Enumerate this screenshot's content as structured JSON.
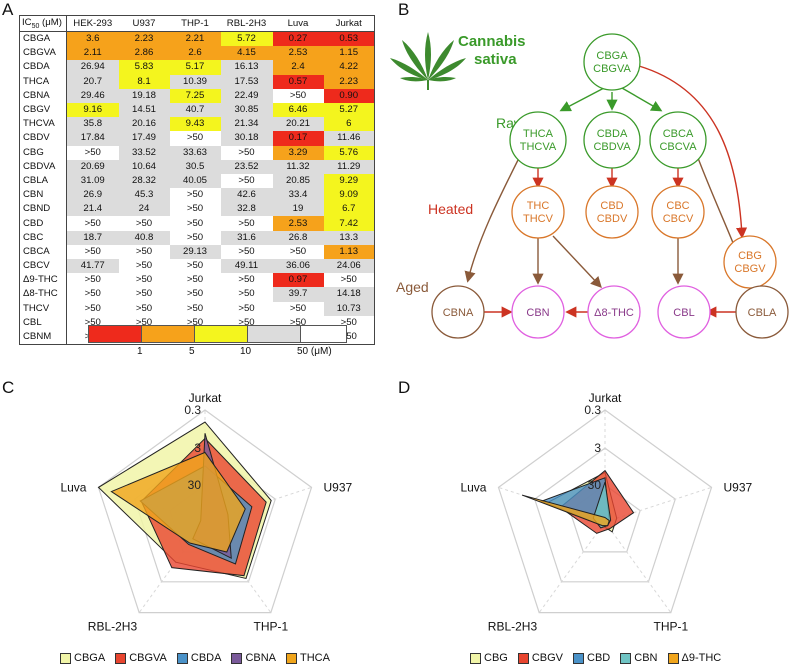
{
  "panels": {
    "a": "A",
    "b": "B",
    "c": "C",
    "d": "D"
  },
  "table": {
    "header_prefix": "IC",
    "header_sub": "50",
    "header_unit": " (μM)",
    "columns": [
      "HEK-293",
      "U937",
      "THP-1",
      "RBL-2H3",
      "Luva",
      "Jurkat"
    ],
    "rows": [
      {
        "name": "CBGA",
        "values": [
          "3.6",
          "2.23",
          "2.21",
          "5.72",
          "0.27",
          "0.53"
        ]
      },
      {
        "name": "CBGVA",
        "values": [
          "2.11",
          "2.86",
          "2.6",
          "4.15",
          "2.53",
          "1.15"
        ]
      },
      {
        "name": "CBDA",
        "values": [
          "26.94",
          "5.83",
          "5.17",
          "16.13",
          "2.4",
          "4.22"
        ]
      },
      {
        "name": "THCA",
        "values": [
          "20.7",
          "8.1",
          "10.39",
          "17.53",
          "0.57",
          "2.23"
        ]
      },
      {
        "name": "CBNA",
        "values": [
          "29.46",
          "19.18",
          "7.25",
          "22.49",
          ">50",
          "0.90"
        ]
      },
      {
        "name": "CBGV",
        "values": [
          "9.16",
          "14.51",
          "40.7",
          "30.85",
          "6.46",
          "5.27"
        ]
      },
      {
        "name": "THCVA",
        "values": [
          "35.8",
          "20.16",
          "9.43",
          "21.34",
          "20.21",
          "6"
        ]
      },
      {
        "name": "CBDV",
        "values": [
          "17.84",
          "17.49",
          ">50",
          "30.18",
          "0.17",
          "11.46"
        ]
      },
      {
        "name": "CBG",
        "values": [
          ">50",
          "33.52",
          "33.63",
          ">50",
          "3.29",
          "5.76"
        ]
      },
      {
        "name": "CBDVA",
        "values": [
          "20.69",
          "10.64",
          "30.5",
          "23.52",
          "11.32",
          "11.29"
        ]
      },
      {
        "name": "CBLA",
        "values": [
          "31.09",
          "28.32",
          "40.05",
          ">50",
          "20.85",
          "9.29"
        ]
      },
      {
        "name": "CBN",
        "values": [
          "26.9",
          "45.3",
          ">50",
          "42.6",
          "33.4",
          "9.09"
        ]
      },
      {
        "name": "CBND",
        "values": [
          "21.4",
          "24",
          ">50",
          "32.8",
          "19",
          "6.7"
        ]
      },
      {
        "name": "CBD",
        "values": [
          ">50",
          ">50",
          ">50",
          ">50",
          "2.53",
          "7.42"
        ]
      },
      {
        "name": "CBC",
        "values": [
          "18.7",
          "40.8",
          ">50",
          "31.6",
          "26.8",
          "13.3"
        ]
      },
      {
        "name": "CBCA",
        "values": [
          ">50",
          ">50",
          "29.13",
          ">50",
          ">50",
          "1.13"
        ]
      },
      {
        "name": "CBCV",
        "values": [
          "41.77",
          ">50",
          ">50",
          "49.11",
          "36.06",
          "24.06"
        ]
      },
      {
        "name": "Δ9-THC",
        "values": [
          ">50",
          ">50",
          ">50",
          ">50",
          "0.97",
          ">50"
        ]
      },
      {
        "name": "Δ8-THC",
        "values": [
          ">50",
          ">50",
          ">50",
          ">50",
          "39.7",
          "14.18"
        ]
      },
      {
        "name": "THCV",
        "values": [
          ">50",
          ">50",
          ">50",
          ">50",
          ">50",
          "10.73"
        ]
      },
      {
        "name": "CBL",
        "values": [
          ">50",
          ">50",
          ">50",
          ">50",
          ">50",
          ">50"
        ]
      },
      {
        "name": "CBNM",
        "values": [
          ">50",
          ">50",
          ">50",
          ">50",
          ">50",
          ">50"
        ]
      }
    ],
    "colorbar": {
      "labels": [
        "1",
        "5",
        "10",
        "50 (μM)"
      ],
      "colors": {
        "red": "#ee2a1c",
        "orange": "#f6a21b",
        "yellow": "#f4f51e",
        "gray": "#dcdcdc",
        "white": "#ffffff"
      }
    }
  },
  "diagram": {
    "title_line1": "Cannabis",
    "title_line2": "sativa",
    "stage_raw": "Raw",
    "stage_heated": "Heated",
    "stage_aged": "Aged",
    "nodes": {
      "top": [
        "CBGA",
        "CBGVA"
      ],
      "raw1": [
        "THCA",
        "THCVA"
      ],
      "raw2": [
        "CBDA",
        "CBDVA"
      ],
      "raw3": [
        "CBCA",
        "CBCVA"
      ],
      "heat1": [
        "THC",
        "THCV"
      ],
      "heat2": [
        "CBD",
        "CBDV"
      ],
      "heat3": [
        "CBC",
        "CBCV"
      ],
      "heat4": [
        "CBG",
        "CBGV"
      ],
      "aged_cbna": "CBNA",
      "aged_cbn": "CBN",
      "aged_d8": "Δ8-THC",
      "aged_cbl": "CBL",
      "aged_cbla": "CBLA"
    },
    "colors": {
      "green": "#3a9a2a",
      "orange": "#d9772a",
      "red": "#cc3322",
      "brown": "#8a5a3a",
      "pink": "#e060e0"
    }
  },
  "radar_c": {
    "axes": [
      "Jurkat",
      "U937",
      "THP-1",
      "RBL-2H3",
      "Luva"
    ],
    "ticks": [
      "0.3",
      "3",
      "30"
    ],
    "legend": [
      "CBGA",
      "CBGVA",
      "CBDA",
      "CBNA",
      "THCA"
    ]
  },
  "radar_d": {
    "axes": [
      "Jurkat",
      "U937",
      "THP-1",
      "RBL-2H3",
      "Luva"
    ],
    "ticks": [
      "0.3",
      "3",
      "30"
    ],
    "legend": [
      "CBG",
      "CBGV",
      "CBD",
      "CBN",
      "Δ9-THC"
    ]
  },
  "chart_data": [
    {
      "type": "radar",
      "axes": [
        "Jurkat",
        "U937",
        "THP-1",
        "RBL-2H3",
        "Luva"
      ],
      "scale": "log, reversed (IC50 μM; smaller values plotted further out)",
      "ticks": [
        0.3,
        3,
        30
      ],
      "series": [
        {
          "name": "CBGA",
          "values": [
            0.53,
            2.23,
            2.21,
            5.72,
            0.27
          ],
          "color": "#f1f5a8"
        },
        {
          "name": "CBGVA",
          "values": [
            1.15,
            2.86,
            2.6,
            4.15,
            2.53
          ],
          "color": "#e8452f"
        },
        {
          "name": "CBDA",
          "values": [
            4.22,
            5.83,
            5.17,
            16.13,
            2.4
          ],
          "color": "#4a92c8"
        },
        {
          "name": "CBNA",
          "values": [
            0.9,
            19.18,
            7.25,
            22.49,
            50
          ],
          "color": "#7a5a9a"
        },
        {
          "name": "THCA",
          "values": [
            2.23,
            8.1,
            10.39,
            17.53,
            0.57
          ],
          "color": "#f0a51c"
        }
      ]
    },
    {
      "type": "radar",
      "axes": [
        "Jurkat",
        "U937",
        "THP-1",
        "RBL-2H3",
        "Luva"
      ],
      "scale": "log, reversed (IC50 μM; smaller values plotted further out)",
      "ticks": [
        0.3,
        3,
        30
      ],
      "series": [
        {
          "name": "CBG",
          "values": [
            5.76,
            33.52,
            33.63,
            50,
            3.29
          ],
          "color": "#f1f5a8"
        },
        {
          "name": "CBGV",
          "values": [
            5.27,
            14.51,
            40.7,
            30.85,
            6.46
          ],
          "color": "#e8452f"
        },
        {
          "name": "CBD",
          "values": [
            7.42,
            50,
            50,
            50,
            2.53
          ],
          "color": "#4a92c8"
        },
        {
          "name": "CBN",
          "values": [
            9.09,
            45.3,
            50,
            42.6,
            33.4
          ],
          "color": "#6fc4c4"
        },
        {
          "name": "Δ9-THC",
          "values": [
            50,
            50,
            50,
            50,
            0.97
          ],
          "color": "#f0a51c"
        }
      ]
    }
  ]
}
